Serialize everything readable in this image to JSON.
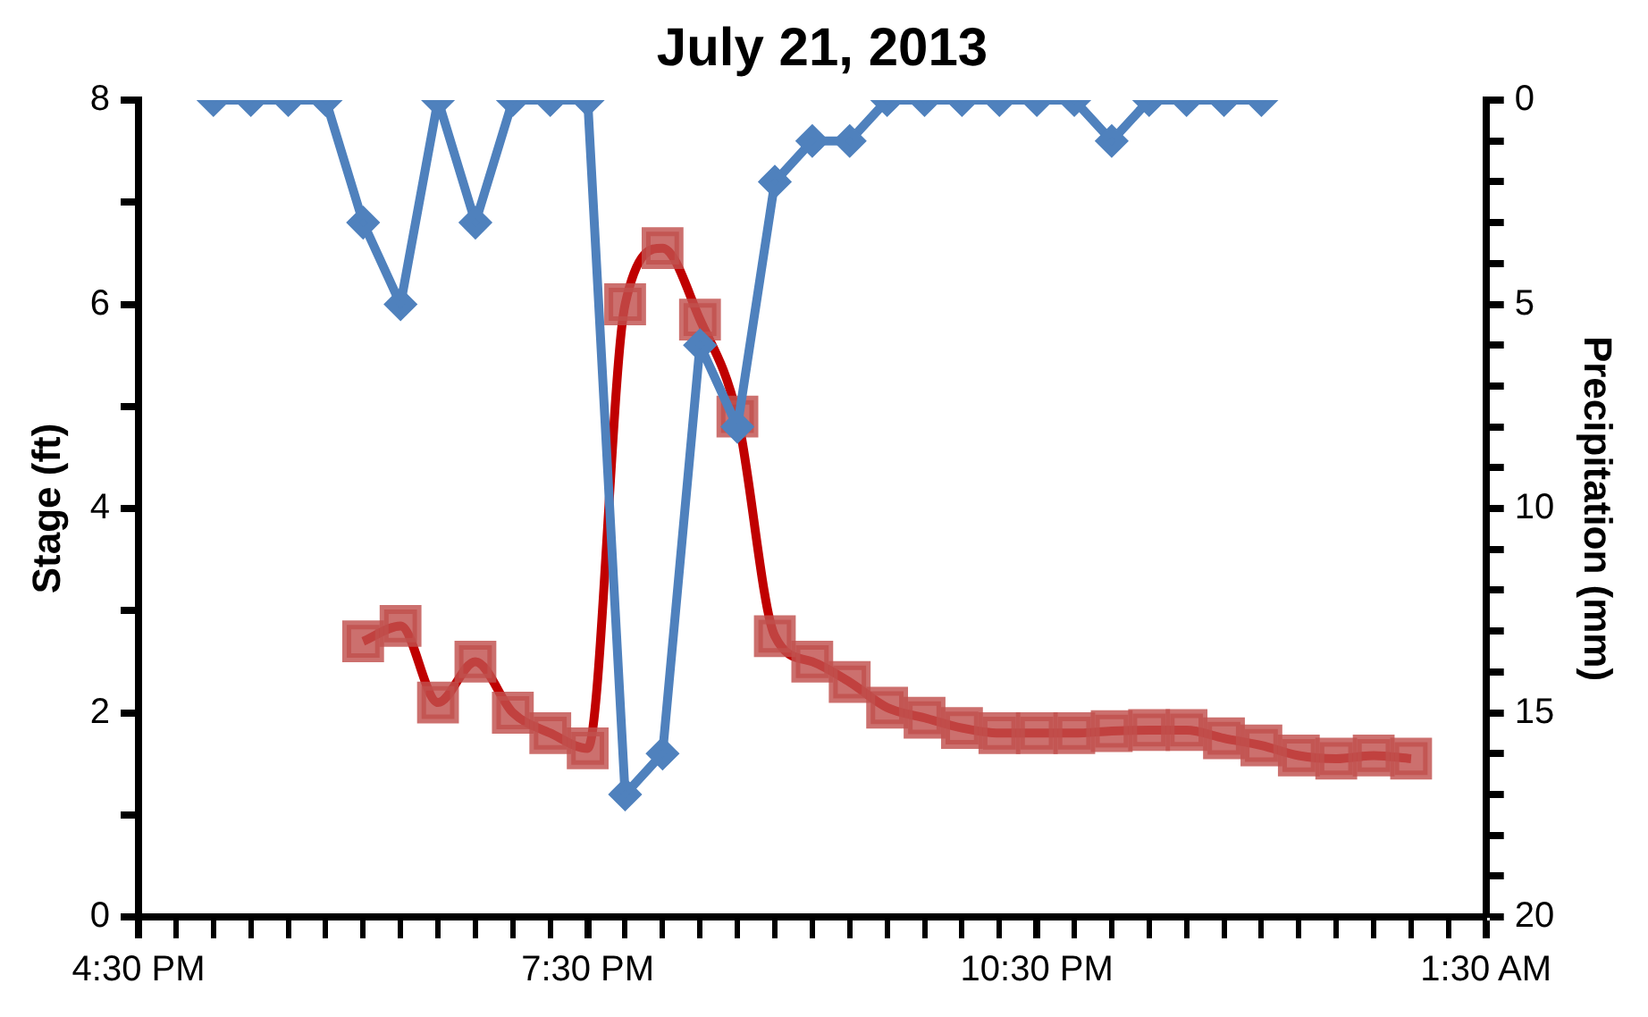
{
  "chart_data": {
    "type": "line",
    "title": "July 21, 2013",
    "ylabel": "Stage (ft)",
    "y2label": "Precipitation (mm)",
    "xlim": [
      "2013-07-21T16:30",
      "2013-07-22T01:30"
    ],
    "xticks": [
      {
        "value": "2013-07-21T16:30",
        "label": "4:30 PM"
      },
      {
        "value": "2013-07-21T16:45",
        "label": null
      },
      {
        "value": "2013-07-21T17:00",
        "label": null
      },
      {
        "value": "2013-07-21T17:15",
        "label": null
      },
      {
        "value": "2013-07-21T17:30",
        "label": null
      },
      {
        "value": "2013-07-21T17:45",
        "label": null
      },
      {
        "value": "2013-07-21T18:00",
        "label": null
      },
      {
        "value": "2013-07-21T18:15",
        "label": null
      },
      {
        "value": "2013-07-21T18:30",
        "label": null
      },
      {
        "value": "2013-07-21T18:45",
        "label": null
      },
      {
        "value": "2013-07-21T19:00",
        "label": null
      },
      {
        "value": "2013-07-21T19:15",
        "label": null
      },
      {
        "value": "2013-07-21T19:30",
        "label": "7:30 PM"
      },
      {
        "value": "2013-07-21T19:45",
        "label": null
      },
      {
        "value": "2013-07-21T20:00",
        "label": null
      },
      {
        "value": "2013-07-21T20:15",
        "label": null
      },
      {
        "value": "2013-07-21T20:30",
        "label": null
      },
      {
        "value": "2013-07-21T20:45",
        "label": null
      },
      {
        "value": "2013-07-21T21:00",
        "label": null
      },
      {
        "value": "2013-07-21T21:15",
        "label": null
      },
      {
        "value": "2013-07-21T21:30",
        "label": null
      },
      {
        "value": "2013-07-21T21:45",
        "label": null
      },
      {
        "value": "2013-07-21T22:00",
        "label": null
      },
      {
        "value": "2013-07-21T22:15",
        "label": null
      },
      {
        "value": "2013-07-21T22:30",
        "label": "10:30 PM"
      },
      {
        "value": "2013-07-21T22:45",
        "label": null
      },
      {
        "value": "2013-07-21T23:00",
        "label": null
      },
      {
        "value": "2013-07-21T23:15",
        "label": null
      },
      {
        "value": "2013-07-21T23:30",
        "label": null
      },
      {
        "value": "2013-07-21T23:45",
        "label": null
      },
      {
        "value": "2013-07-22T00:00",
        "label": null
      },
      {
        "value": "2013-07-22T00:15",
        "label": null
      },
      {
        "value": "2013-07-22T00:30",
        "label": null
      },
      {
        "value": "2013-07-22T00:45",
        "label": null
      },
      {
        "value": "2013-07-22T01:00",
        "label": null
      },
      {
        "value": "2013-07-22T01:15",
        "label": null
      },
      {
        "value": "2013-07-22T01:30",
        "label": "1:30 AM"
      }
    ],
    "ylim": [
      0,
      8
    ],
    "yticks": [
      0,
      {
        "value": 1,
        "label": null
      },
      2,
      {
        "value": 3,
        "label": null
      },
      4,
      {
        "value": 5,
        "label": null
      },
      6,
      {
        "value": 7,
        "label": null
      },
      8
    ],
    "y2lim": [
      20,
      0
    ],
    "y2ticks": [
      0,
      {
        "value": 1,
        "label": null
      },
      {
        "value": 2,
        "label": null
      },
      {
        "value": 3,
        "label": null
      },
      {
        "value": 4,
        "label": null
      },
      5,
      {
        "value": 6,
        "label": null
      },
      {
        "value": 7,
        "label": null
      },
      {
        "value": 8,
        "label": null
      },
      {
        "value": 9,
        "label": null
      },
      10,
      {
        "value": 11,
        "label": null
      },
      {
        "value": 12,
        "label": null
      },
      {
        "value": 13,
        "label": null
      },
      {
        "value": 14,
        "label": null
      },
      15,
      {
        "value": 16,
        "label": null
      },
      {
        "value": 17,
        "label": null
      },
      {
        "value": 18,
        "label": null
      },
      {
        "value": 19,
        "label": null
      },
      20
    ],
    "grid": false,
    "series": [
      {
        "axis": "y2",
        "color": "#4f81bd",
        "marker": "diamond",
        "x": [
          "2013-07-21T17:00",
          "2013-07-21T17:15",
          "2013-07-21T17:30",
          "2013-07-21T17:45",
          "2013-07-21T18:00",
          "2013-07-21T18:15",
          "2013-07-21T18:30",
          "2013-07-21T18:45",
          "2013-07-21T19:00",
          "2013-07-21T19:15",
          "2013-07-21T19:30",
          "2013-07-21T19:45",
          "2013-07-21T20:00",
          "2013-07-21T20:15",
          "2013-07-21T20:30",
          "2013-07-21T20:45",
          "2013-07-21T21:00",
          "2013-07-21T21:15",
          "2013-07-21T21:30",
          "2013-07-21T21:45",
          "2013-07-21T22:00",
          "2013-07-21T22:15",
          "2013-07-21T22:30",
          "2013-07-21T22:45",
          "2013-07-21T23:00",
          "2013-07-21T23:15",
          "2013-07-21T23:30",
          "2013-07-21T23:45",
          "2013-07-22T00:00"
        ],
        "values": [
          0,
          0,
          0,
          0,
          3,
          5,
          0,
          3,
          0,
          0,
          0,
          17,
          16,
          6,
          8,
          2,
          1,
          1,
          0,
          0,
          0,
          0,
          0,
          0,
          1,
          0,
          0,
          0,
          0
        ]
      },
      {
        "axis": "y",
        "color": "#c00000",
        "marker": "square",
        "x": [
          "2013-07-21T18:00",
          "2013-07-21T18:15",
          "2013-07-21T18:30",
          "2013-07-21T18:45",
          "2013-07-21T19:00",
          "2013-07-21T19:15",
          "2013-07-21T19:30",
          "2013-07-21T19:45",
          "2013-07-21T20:00",
          "2013-07-21T20:15",
          "2013-07-21T20:30",
          "2013-07-21T20:45",
          "2013-07-21T21:00",
          "2013-07-21T21:15",
          "2013-07-21T21:30",
          "2013-07-21T21:45",
          "2013-07-21T22:00",
          "2013-07-21T22:15",
          "2013-07-21T22:30",
          "2013-07-21T22:45",
          "2013-07-21T23:00",
          "2013-07-21T23:15",
          "2013-07-21T23:30",
          "2013-07-21T23:45",
          "2013-07-22T00:00",
          "2013-07-22T00:15",
          "2013-07-22T00:30",
          "2013-07-22T00:45",
          "2013-07-22T01:00"
        ],
        "values": [
          2.7,
          2.85,
          2.1,
          2.5,
          2.0,
          1.8,
          1.65,
          6.0,
          6.55,
          5.85,
          4.9,
          2.75,
          2.5,
          2.3,
          2.05,
          1.95,
          1.85,
          1.8,
          1.8,
          1.8,
          1.82,
          1.83,
          1.83,
          1.75,
          1.68,
          1.58,
          1.55,
          1.58,
          1.55
        ]
      }
    ]
  }
}
